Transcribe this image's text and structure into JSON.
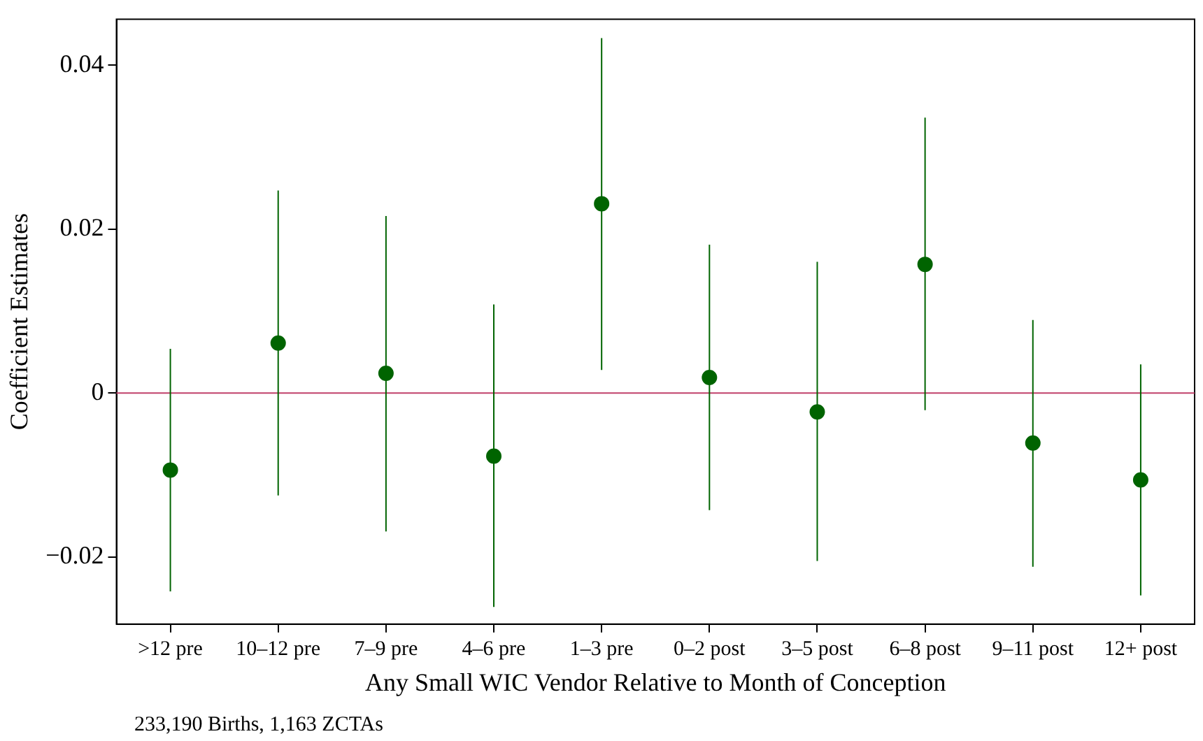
{
  "chart_data": {
    "type": "scatter",
    "xlabel": "Any Small WIC Vendor Relative to Month of Conception",
    "ylabel": "Coefficient Estimates",
    "categories": [
      ">12 pre",
      "10–12 pre",
      "7–9 pre",
      "4–6 pre",
      "1–3 pre",
      "0–2 post",
      "3–5 post",
      "6–8 post",
      "9–11 post",
      "12+ post"
    ],
    "values": [
      -0.0094,
      0.0061,
      0.0024,
      -0.0077,
      0.0231,
      0.0019,
      -0.0023,
      0.0157,
      -0.0061,
      -0.0106
    ],
    "errors": [
      [
        -0.0242,
        0.0054
      ],
      [
        -0.0125,
        0.0247
      ],
      [
        -0.0169,
        0.0216
      ],
      [
        -0.0261,
        0.0108
      ],
      [
        0.0028,
        0.0433
      ],
      [
        -0.0143,
        0.0181
      ],
      [
        -0.0205,
        0.016
      ],
      [
        -0.0021,
        0.0336
      ],
      [
        -0.0212,
        0.0089
      ],
      [
        -0.0247,
        0.0035
      ]
    ],
    "color": "#006400",
    "marker": "circle",
    "grid": false,
    "legend": false,
    "ylim": [
      -0.0282,
      0.0456
    ],
    "yticks": [
      {
        "value": -0.02,
        "label": "−0.02"
      },
      0,
      0.02,
      0.04
    ],
    "ref_lines": [
      {
        "axis": "y",
        "value": 0,
        "color": "#c0406a"
      }
    ],
    "annotations": [
      "233,190 Births, 1,163 ZCTAs"
    ]
  }
}
